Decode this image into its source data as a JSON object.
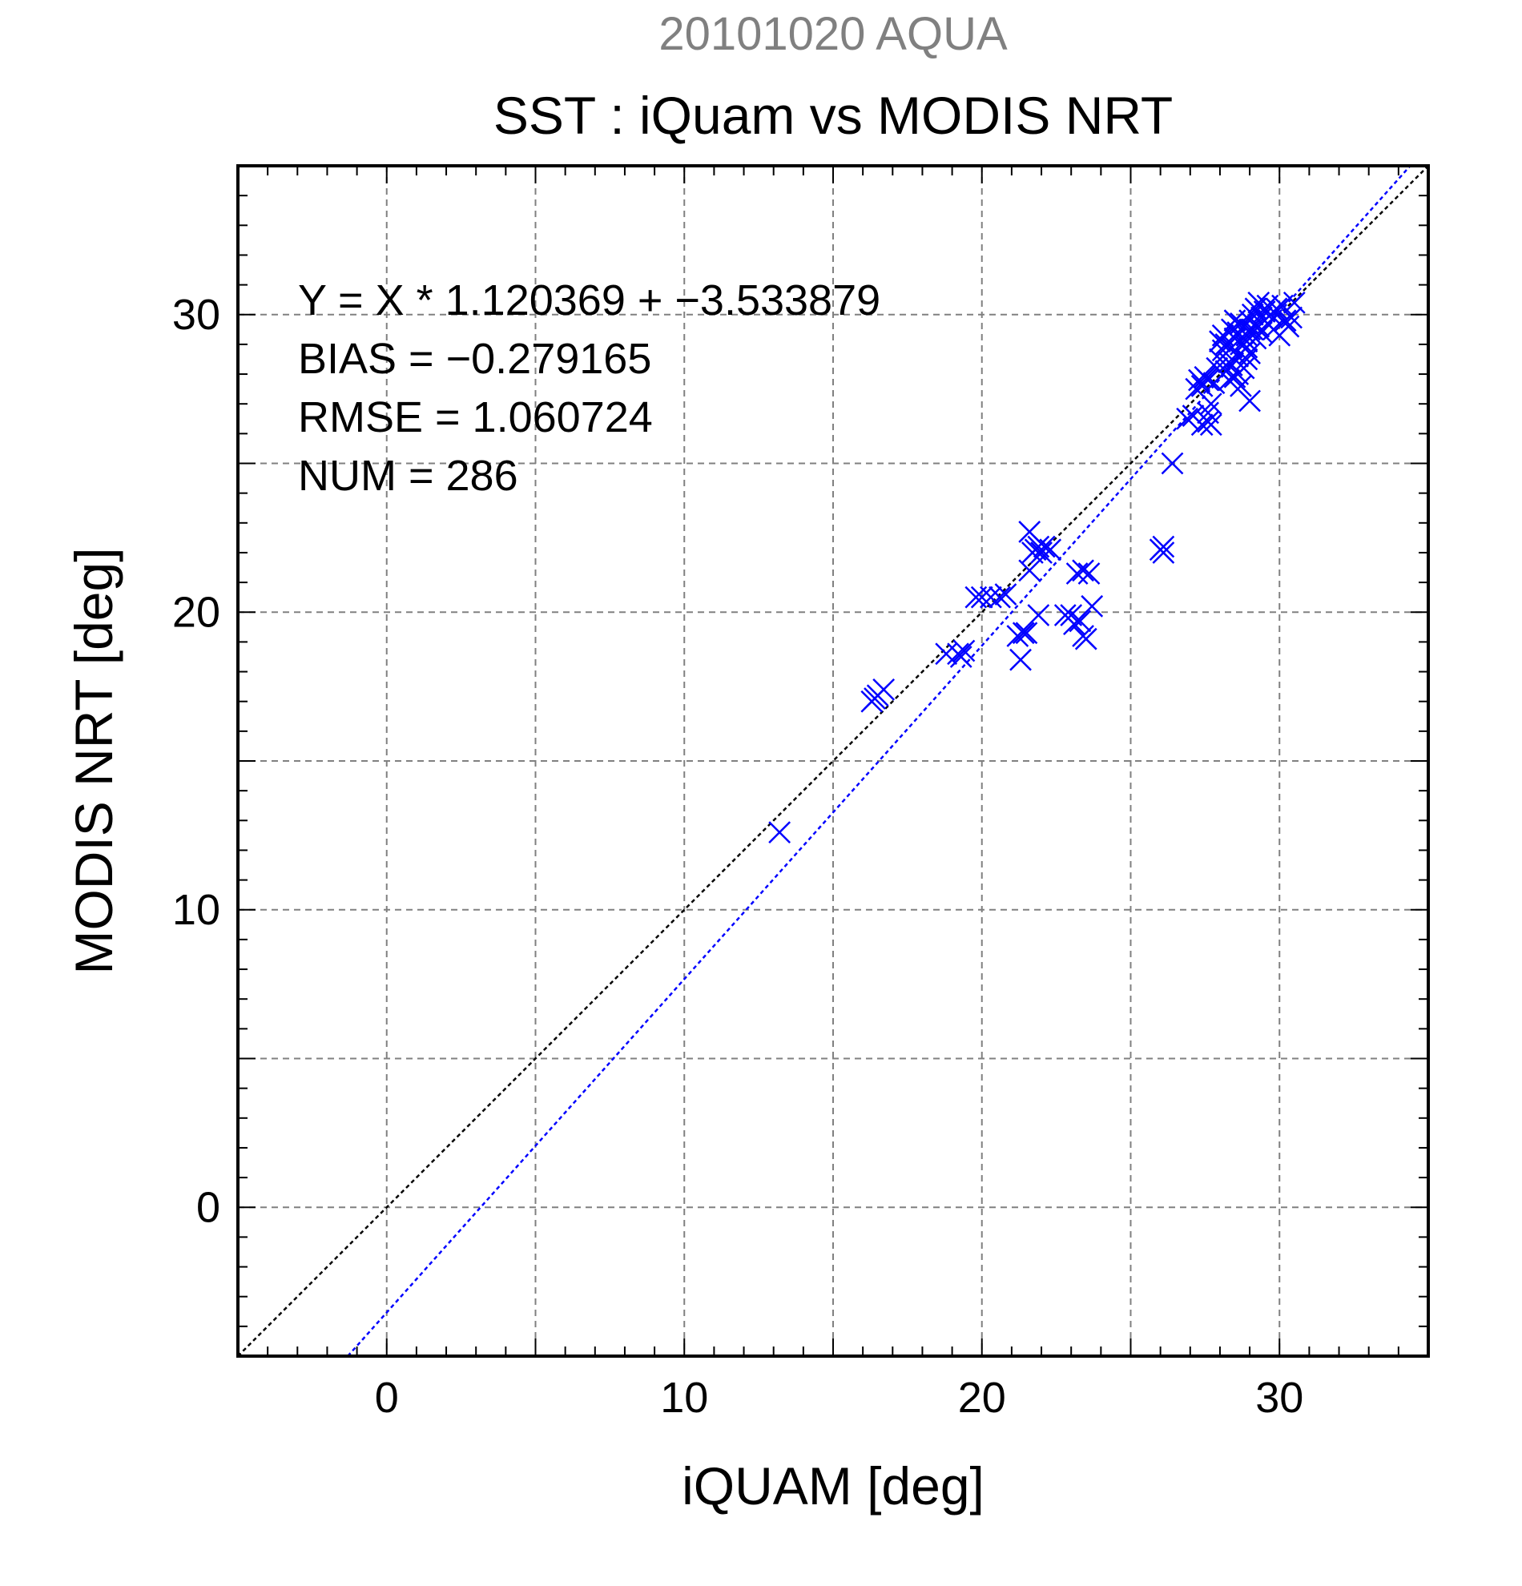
{
  "chart_data": {
    "type": "scatter",
    "title": "20101020 AQUA",
    "subtitle": "SST : iQuam vs MODIS NRT",
    "xlabel": "iQUAM [deg]",
    "ylabel": "MODIS NRT [deg]",
    "xlim": [
      -5,
      35
    ],
    "ylim": [
      -5,
      35
    ],
    "x_ticks": [
      0,
      10,
      20,
      30
    ],
    "y_ticks": [
      0,
      10,
      20,
      30
    ],
    "grid": true,
    "stats": [
      "Y = X * 1.120369 + −3.533879",
      "BIAS = −0.279165",
      "RMSE = 1.060724",
      "NUM = 286"
    ],
    "lines": [
      {
        "label": "identity",
        "slope": 1,
        "intercept": 0,
        "color": "#000000"
      },
      {
        "label": "regression",
        "slope": 1.120369,
        "intercept": -3.533879,
        "color": "#0000ff"
      }
    ],
    "colors": {
      "points": "#0000ff",
      "title": "#808080",
      "text": "#000000",
      "grid": "#808080"
    },
    "points": [
      [
        13.2,
        12.6
      ],
      [
        16.3,
        17.0
      ],
      [
        16.5,
        17.2
      ],
      [
        16.7,
        17.4
      ],
      [
        16.4,
        17.1
      ],
      [
        18.8,
        18.6
      ],
      [
        19.2,
        18.6
      ],
      [
        19.4,
        18.7
      ],
      [
        19.3,
        18.5
      ],
      [
        19.8,
        20.5
      ],
      [
        20.0,
        20.5
      ],
      [
        20.3,
        20.5
      ],
      [
        20.6,
        20.5
      ],
      [
        20.8,
        20.6
      ],
      [
        21.3,
        18.4
      ],
      [
        21.4,
        19.3
      ],
      [
        21.2,
        19.2
      ],
      [
        21.5,
        19.3
      ],
      [
        21.6,
        22.7
      ],
      [
        21.6,
        21.4
      ],
      [
        21.7,
        22.0
      ],
      [
        21.8,
        22.1
      ],
      [
        21.9,
        22.2
      ],
      [
        22.0,
        22.0
      ],
      [
        22.1,
        22.2
      ],
      [
        22.3,
        22.1
      ],
      [
        21.9,
        19.9
      ],
      [
        22.8,
        19.9
      ],
      [
        23.0,
        19.9
      ],
      [
        23.1,
        19.6
      ],
      [
        23.3,
        19.7
      ],
      [
        23.2,
        21.3
      ],
      [
        23.4,
        21.4
      ],
      [
        23.6,
        21.3
      ],
      [
        23.4,
        19.2
      ],
      [
        23.5,
        19.1
      ],
      [
        23.7,
        20.2
      ],
      [
        26.1,
        22.0
      ],
      [
        26.1,
        22.2
      ],
      [
        26.0,
        22.1
      ],
      [
        26.4,
        25.0
      ],
      [
        26.9,
        26.5
      ],
      [
        27.1,
        26.6
      ],
      [
        27.4,
        26.3
      ],
      [
        27.6,
        26.4
      ],
      [
        27.7,
        26.3
      ],
      [
        27.6,
        26.7
      ],
      [
        27.7,
        27.0
      ],
      [
        27.2,
        27.5
      ],
      [
        27.3,
        27.8
      ],
      [
        27.4,
        27.6
      ],
      [
        27.5,
        27.9
      ],
      [
        27.6,
        27.8
      ],
      [
        27.8,
        27.7
      ],
      [
        27.9,
        28.2
      ],
      [
        28.0,
        28.5
      ],
      [
        28.1,
        28.8
      ],
      [
        28.0,
        29.1
      ],
      [
        28.1,
        29.3
      ],
      [
        28.2,
        28.1
      ],
      [
        28.3,
        27.8
      ],
      [
        28.3,
        28.4
      ],
      [
        28.4,
        28.9
      ],
      [
        28.5,
        29.2
      ],
      [
        28.4,
        29.5
      ],
      [
        28.5,
        27.9
      ],
      [
        28.6,
        28.6
      ],
      [
        28.7,
        29.0
      ],
      [
        28.6,
        29.4
      ],
      [
        28.7,
        29.7
      ],
      [
        28.8,
        28.2
      ],
      [
        28.8,
        29.6
      ],
      [
        28.9,
        28.9
      ],
      [
        28.9,
        29.3
      ],
      [
        29.0,
        27.1
      ],
      [
        29.0,
        29.8
      ],
      [
        29.1,
        29.5
      ],
      [
        29.1,
        30.0
      ],
      [
        29.2,
        29.2
      ],
      [
        29.2,
        30.2
      ],
      [
        29.3,
        29.6
      ],
      [
        29.4,
        29.9
      ],
      [
        29.4,
        29.4
      ],
      [
        29.5,
        30.1
      ],
      [
        29.6,
        29.7
      ],
      [
        29.7,
        30.0
      ],
      [
        29.8,
        29.5
      ],
      [
        29.9,
        30.2
      ],
      [
        30.0,
        29.3
      ],
      [
        30.1,
        30.3
      ],
      [
        30.2,
        29.8
      ],
      [
        30.3,
        29.6
      ],
      [
        30.4,
        29.9
      ],
      [
        30.5,
        30.4
      ],
      [
        28.2,
        29.0
      ],
      [
        28.6,
        28.0
      ],
      [
        28.9,
        28.5
      ],
      [
        29.0,
        28.7
      ],
      [
        28.4,
        28.3
      ],
      [
        28.7,
        27.6
      ],
      [
        28.9,
        29.1
      ],
      [
        29.3,
        30.4
      ],
      [
        28.5,
        29.8
      ],
      [
        29.6,
        30.3
      ],
      [
        29.0,
        29.5
      ]
    ]
  }
}
